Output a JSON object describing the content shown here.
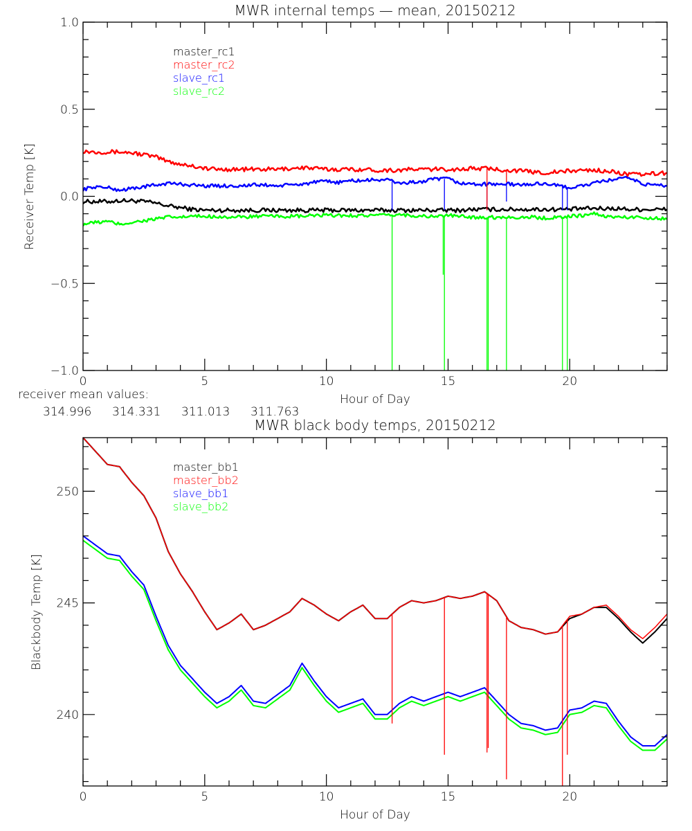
{
  "chart_data": [
    {
      "type": "line",
      "title": "MWR internal temps — mean, 20150212",
      "xlabel": "Hour of Day",
      "ylabel": "Receiver Temp [K]",
      "xlim": [
        0,
        24
      ],
      "ylim": [
        -1.0,
        1.0
      ],
      "xticks": [
        "0",
        "5",
        "10",
        "15",
        "20"
      ],
      "yticks": [
        "1.0",
        "0.5",
        "0.0",
        "-0.5",
        "-1.0"
      ],
      "legend_position": "top-left",
      "grid": false,
      "x": [
        0,
        0.5,
        1,
        1.5,
        2,
        2.5,
        3,
        3.5,
        4,
        4.5,
        5,
        5.5,
        6,
        6.5,
        7,
        7.5,
        8,
        8.5,
        9,
        9.5,
        10,
        10.5,
        11,
        11.5,
        12,
        12.5,
        13,
        13.5,
        14,
        14.5,
        15,
        15.5,
        16,
        16.5,
        17,
        17.5,
        18,
        18.5,
        19,
        19.5,
        20,
        20.5,
        21,
        21.5,
        22,
        22.5,
        23,
        23.5,
        24
      ],
      "series": [
        {
          "name": "master_rc1",
          "color": "#000000",
          "values": [
            -0.03,
            -0.03,
            -0.03,
            -0.025,
            -0.025,
            -0.03,
            -0.04,
            -0.055,
            -0.065,
            -0.075,
            -0.08,
            -0.08,
            -0.08,
            -0.08,
            -0.08,
            -0.08,
            -0.08,
            -0.08,
            -0.08,
            -0.08,
            -0.08,
            -0.08,
            -0.08,
            -0.08,
            -0.08,
            -0.08,
            -0.08,
            -0.08,
            -0.08,
            -0.08,
            -0.08,
            -0.08,
            -0.075,
            -0.075,
            -0.075,
            -0.075,
            -0.075,
            -0.075,
            -0.075,
            -0.075,
            -0.075,
            -0.07,
            -0.07,
            -0.07,
            -0.07,
            -0.075,
            -0.075,
            -0.075,
            -0.075
          ]
        },
        {
          "name": "master_rc2",
          "color": "#ff0000",
          "values": [
            0.26,
            0.255,
            0.255,
            0.255,
            0.25,
            0.24,
            0.225,
            0.2,
            0.185,
            0.175,
            0.16,
            0.155,
            0.155,
            0.155,
            0.155,
            0.155,
            0.155,
            0.16,
            0.165,
            0.16,
            0.155,
            0.155,
            0.155,
            0.155,
            0.15,
            0.15,
            0.15,
            0.155,
            0.155,
            0.155,
            0.155,
            0.155,
            0.16,
            0.16,
            0.155,
            0.15,
            0.145,
            0.14,
            0.135,
            0.14,
            0.145,
            0.15,
            0.15,
            0.145,
            0.135,
            0.125,
            0.125,
            0.13,
            0.135
          ]
        },
        {
          "name": "slave_rc1",
          "color": "#0000ff",
          "values": [
            0.04,
            0.055,
            0.05,
            0.035,
            0.045,
            0.055,
            0.065,
            0.075,
            0.07,
            0.065,
            0.06,
            0.06,
            0.06,
            0.06,
            0.065,
            0.065,
            0.06,
            0.065,
            0.07,
            0.08,
            0.085,
            0.08,
            0.09,
            0.09,
            0.095,
            0.095,
            0.075,
            0.08,
            0.085,
            0.1,
            0.1,
            0.075,
            0.07,
            0.07,
            0.07,
            0.07,
            0.065,
            0.07,
            0.075,
            0.06,
            0.05,
            0.06,
            0.075,
            0.09,
            0.1,
            0.105,
            0.07,
            0.065,
            0.06
          ]
        },
        {
          "name": "slave_rc2",
          "color": "#00ff00",
          "values": [
            -0.16,
            -0.15,
            -0.145,
            -0.16,
            -0.15,
            -0.14,
            -0.13,
            -0.12,
            -0.12,
            -0.115,
            -0.115,
            -0.115,
            -0.12,
            -0.12,
            -0.115,
            -0.115,
            -0.115,
            -0.115,
            -0.115,
            -0.11,
            -0.11,
            -0.11,
            -0.11,
            -0.11,
            -0.11,
            -0.11,
            -0.105,
            -0.11,
            -0.115,
            -0.115,
            -0.11,
            -0.115,
            -0.12,
            -0.12,
            -0.12,
            -0.12,
            -0.12,
            -0.12,
            -0.125,
            -0.12,
            -0.115,
            -0.11,
            -0.1,
            -0.115,
            -0.12,
            -0.12,
            -0.12,
            -0.125,
            -0.13
          ]
        }
      ],
      "spikes": [
        {
          "hour": 12.7,
          "series": "slave_rc2",
          "to": -1.0
        },
        {
          "hour": 12.7,
          "series": "slave_rc1",
          "to": -0.08
        },
        {
          "hour": 14.8,
          "series": "slave_rc2",
          "to": -0.45
        },
        {
          "hour": 14.85,
          "series": "slave_rc2",
          "to": -1.0
        },
        {
          "hour": 14.85,
          "series": "slave_rc1",
          "to": -0.08
        },
        {
          "hour": 16.6,
          "series": "slave_rc2",
          "to": -1.0
        },
        {
          "hour": 16.65,
          "series": "slave_rc2",
          "to": -1.0
        },
        {
          "hour": 16.6,
          "series": "slave_rc1",
          "to": -0.08
        },
        {
          "hour": 16.6,
          "series": "master_rc2",
          "to": -0.08
        },
        {
          "hour": 17.4,
          "series": "slave_rc2",
          "to": -1.0
        },
        {
          "hour": 17.4,
          "series": "slave_rc1",
          "to": -0.03
        },
        {
          "hour": 17.4,
          "series": "master_rc2",
          "to": 0.08
        },
        {
          "hour": 19.7,
          "series": "slave_rc2",
          "to": -1.0
        },
        {
          "hour": 19.7,
          "series": "slave_rc1",
          "to": -0.08
        },
        {
          "hour": 19.9,
          "series": "slave_rc2",
          "to": -1.0
        },
        {
          "hour": 19.9,
          "series": "slave_rc1",
          "to": -0.08
        }
      ],
      "annotation": {
        "label": "receiver mean values:",
        "values": [
          {
            "text": "314.996",
            "color": "#000000"
          },
          {
            "text": "314.331",
            "color": "#ff0000"
          },
          {
            "text": "311.013",
            "color": "#0000ff"
          },
          {
            "text": "311.763",
            "color": "#00ff00"
          }
        ]
      }
    },
    {
      "type": "line",
      "title": "MWR black body temps, 20150212",
      "xlabel": "Hour of Day",
      "ylabel": "Blackbody Temp [K]",
      "xlim": [
        0,
        24
      ],
      "ylim": [
        236.8,
        252.4
      ],
      "xticks": [
        "0",
        "5",
        "10",
        "15",
        "20"
      ],
      "yticks": [
        "250",
        "245",
        "240"
      ],
      "legend_position": "top-left",
      "grid": false,
      "x": [
        0,
        0.5,
        1,
        1.5,
        2,
        2.5,
        3,
        3.5,
        4,
        4.5,
        5,
        5.5,
        6,
        6.5,
        7,
        7.5,
        8,
        8.5,
        9,
        9.5,
        10,
        10.5,
        11,
        11.5,
        12,
        12.5,
        13,
        13.5,
        14,
        14.5,
        15,
        15.5,
        16,
        16.5,
        17,
        17.5,
        18,
        18.5,
        19,
        19.5,
        20,
        20.5,
        21,
        21.5,
        22,
        22.5,
        23,
        23.5,
        24
      ],
      "series": [
        {
          "name": "master_bb1",
          "color": "#000000",
          "values": [
            252.4,
            251.8,
            251.2,
            251.1,
            250.4,
            249.8,
            248.8,
            247.3,
            246.3,
            245.5,
            244.6,
            243.8,
            244.1,
            244.5,
            243.8,
            244.0,
            244.3,
            244.6,
            245.2,
            244.9,
            244.5,
            244.2,
            244.6,
            244.9,
            244.3,
            244.3,
            244.8,
            245.1,
            245.0,
            245.1,
            245.3,
            245.2,
            245.3,
            245.5,
            245.1,
            244.2,
            243.9,
            243.8,
            243.6,
            243.7,
            244.3,
            244.5,
            244.8,
            244.8,
            244.3,
            243.7,
            243.2,
            243.7,
            244.3
          ]
        },
        {
          "name": "master_bb2",
          "color": "#ff0000",
          "values": [
            252.4,
            251.8,
            251.2,
            251.1,
            250.4,
            249.8,
            248.8,
            247.3,
            246.3,
            245.5,
            244.6,
            243.8,
            244.1,
            244.5,
            243.8,
            244.0,
            244.3,
            244.6,
            245.2,
            244.9,
            244.5,
            244.2,
            244.6,
            244.9,
            244.3,
            244.3,
            244.8,
            245.1,
            245.0,
            245.1,
            245.3,
            245.2,
            245.3,
            245.5,
            245.1,
            244.2,
            243.9,
            243.8,
            243.6,
            243.7,
            244.4,
            244.5,
            244.8,
            244.9,
            244.4,
            243.8,
            243.4,
            243.9,
            244.5
          ]
        },
        {
          "name": "slave_bb1",
          "color": "#0000ff",
          "values": [
            248.0,
            247.6,
            247.2,
            247.1,
            246.4,
            245.8,
            244.4,
            243.1,
            242.2,
            241.6,
            241.0,
            240.5,
            240.8,
            241.3,
            240.6,
            240.5,
            240.9,
            241.3,
            242.3,
            241.5,
            240.8,
            240.3,
            240.5,
            240.7,
            240.0,
            240.0,
            240.5,
            240.8,
            240.6,
            240.8,
            241.0,
            240.8,
            241.0,
            241.2,
            240.6,
            240.0,
            239.6,
            239.5,
            239.3,
            239.4,
            240.2,
            240.3,
            240.6,
            240.5,
            239.7,
            239.0,
            238.6,
            238.6,
            239.1
          ]
        },
        {
          "name": "slave_bb2",
          "color": "#00ff00",
          "values": [
            247.8,
            247.4,
            247.0,
            246.9,
            246.2,
            245.6,
            244.2,
            242.9,
            242.0,
            241.4,
            240.8,
            240.3,
            240.6,
            241.1,
            240.4,
            240.3,
            240.7,
            241.1,
            242.1,
            241.3,
            240.6,
            240.1,
            240.3,
            240.5,
            239.8,
            239.8,
            240.3,
            240.6,
            240.4,
            240.6,
            240.8,
            240.6,
            240.8,
            241.0,
            240.4,
            239.8,
            239.4,
            239.3,
            239.1,
            239.2,
            240.0,
            240.1,
            240.4,
            240.3,
            239.5,
            238.8,
            238.4,
            238.4,
            238.9
          ]
        }
      ],
      "spikes": [
        {
          "hour": 12.7,
          "series": "master_bb2",
          "to": 239.6
        },
        {
          "hour": 14.85,
          "series": "master_bb2",
          "to": 238.2
        },
        {
          "hour": 16.6,
          "series": "master_bb2",
          "to": 238.3
        },
        {
          "hour": 16.65,
          "series": "master_bb2",
          "to": 238.5
        },
        {
          "hour": 17.4,
          "series": "master_bb2",
          "to": 237.1
        },
        {
          "hour": 19.7,
          "series": "master_bb2",
          "to": 236.8
        },
        {
          "hour": 19.9,
          "series": "master_bb2",
          "to": 238.2
        }
      ]
    }
  ]
}
